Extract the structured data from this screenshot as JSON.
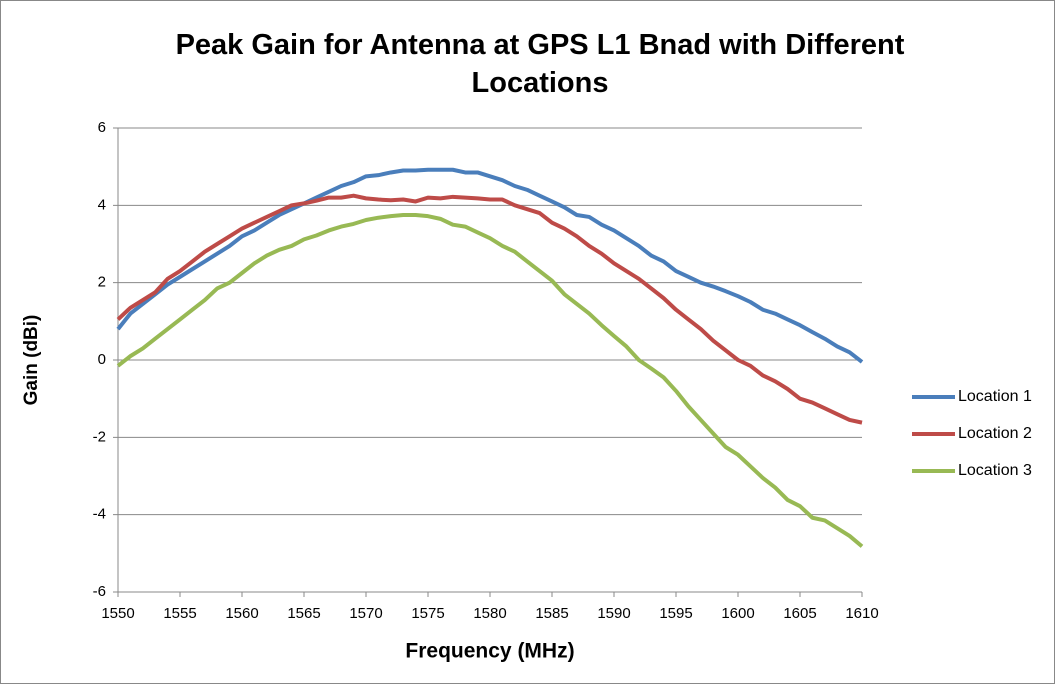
{
  "chart_data": {
    "type": "line",
    "title": "Peak Gain for Antenna at GPS L1 Bnad with Different Locations",
    "xlabel": "Frequency  (MHz)",
    "ylabel": "Gain (dBi)",
    "x": [
      1550,
      1551,
      1552,
      1553,
      1554,
      1555,
      1556,
      1557,
      1558,
      1559,
      1560,
      1561,
      1562,
      1563,
      1564,
      1565,
      1566,
      1567,
      1568,
      1569,
      1570,
      1571,
      1572,
      1573,
      1574,
      1575,
      1576,
      1577,
      1578,
      1579,
      1580,
      1581,
      1582,
      1583,
      1584,
      1585,
      1586,
      1587,
      1588,
      1589,
      1590,
      1591,
      1592,
      1593,
      1594,
      1595,
      1596,
      1597,
      1598,
      1599,
      1600,
      1601,
      1602,
      1603,
      1604,
      1605,
      1606,
      1607,
      1608,
      1609,
      1610
    ],
    "series": [
      {
        "name": "Location 1",
        "color": "#4a7ebb",
        "values": [
          0.8,
          1.2,
          1.45,
          1.7,
          1.95,
          2.15,
          2.35,
          2.55,
          2.75,
          2.95,
          3.2,
          3.35,
          3.55,
          3.75,
          3.9,
          4.05,
          4.2,
          4.35,
          4.5,
          4.6,
          4.75,
          4.78,
          4.85,
          4.9,
          4.9,
          4.92,
          4.92,
          4.92,
          4.85,
          4.85,
          4.75,
          4.65,
          4.5,
          4.4,
          4.25,
          4.1,
          3.95,
          3.75,
          3.7,
          3.5,
          3.35,
          3.15,
          2.95,
          2.7,
          2.55,
          2.3,
          2.15,
          2.0,
          1.9,
          1.78,
          1.65,
          1.5,
          1.3,
          1.2,
          1.05,
          0.9,
          0.72,
          0.55,
          0.35,
          0.2,
          -0.05
        ]
      },
      {
        "name": "Location 2",
        "color": "#be4b48",
        "values": [
          1.05,
          1.35,
          1.55,
          1.75,
          2.1,
          2.3,
          2.55,
          2.8,
          3.0,
          3.2,
          3.4,
          3.55,
          3.7,
          3.85,
          4.0,
          4.05,
          4.12,
          4.2,
          4.2,
          4.25,
          4.18,
          4.15,
          4.13,
          4.15,
          4.1,
          4.2,
          4.18,
          4.22,
          4.2,
          4.18,
          4.15,
          4.15,
          4.0,
          3.9,
          3.8,
          3.55,
          3.4,
          3.2,
          2.95,
          2.75,
          2.5,
          2.3,
          2.1,
          1.85,
          1.6,
          1.3,
          1.05,
          0.8,
          0.5,
          0.25,
          0.0,
          -0.15,
          -0.4,
          -0.55,
          -0.75,
          -1.0,
          -1.1,
          -1.25,
          -1.4,
          -1.55,
          -1.62
        ]
      },
      {
        "name": "Location 3",
        "color": "#98b954",
        "values": [
          -0.15,
          0.1,
          0.3,
          0.55,
          0.8,
          1.05,
          1.3,
          1.55,
          1.85,
          2.0,
          2.25,
          2.5,
          2.7,
          2.85,
          2.95,
          3.12,
          3.22,
          3.35,
          3.45,
          3.52,
          3.62,
          3.68,
          3.72,
          3.75,
          3.75,
          3.72,
          3.65,
          3.5,
          3.45,
          3.3,
          3.15,
          2.95,
          2.8,
          2.55,
          2.3,
          2.05,
          1.7,
          1.45,
          1.2,
          0.9,
          0.62,
          0.35,
          0.0,
          -0.22,
          -0.45,
          -0.8,
          -1.2,
          -1.55,
          -1.9,
          -2.25,
          -2.45,
          -2.75,
          -3.05,
          -3.3,
          -3.62,
          -3.78,
          -4.08,
          -4.15,
          -4.35,
          -4.55,
          -4.82
        ]
      }
    ],
    "xlim": [
      1550,
      1610
    ],
    "xticks": [
      1550,
      1555,
      1560,
      1565,
      1570,
      1575,
      1580,
      1585,
      1590,
      1595,
      1600,
      1605,
      1610
    ],
    "ylim": [
      -6,
      6
    ],
    "yticks": [
      -6,
      -4,
      -2,
      0,
      2,
      4,
      6
    ],
    "grid": true,
    "legend": "right"
  }
}
